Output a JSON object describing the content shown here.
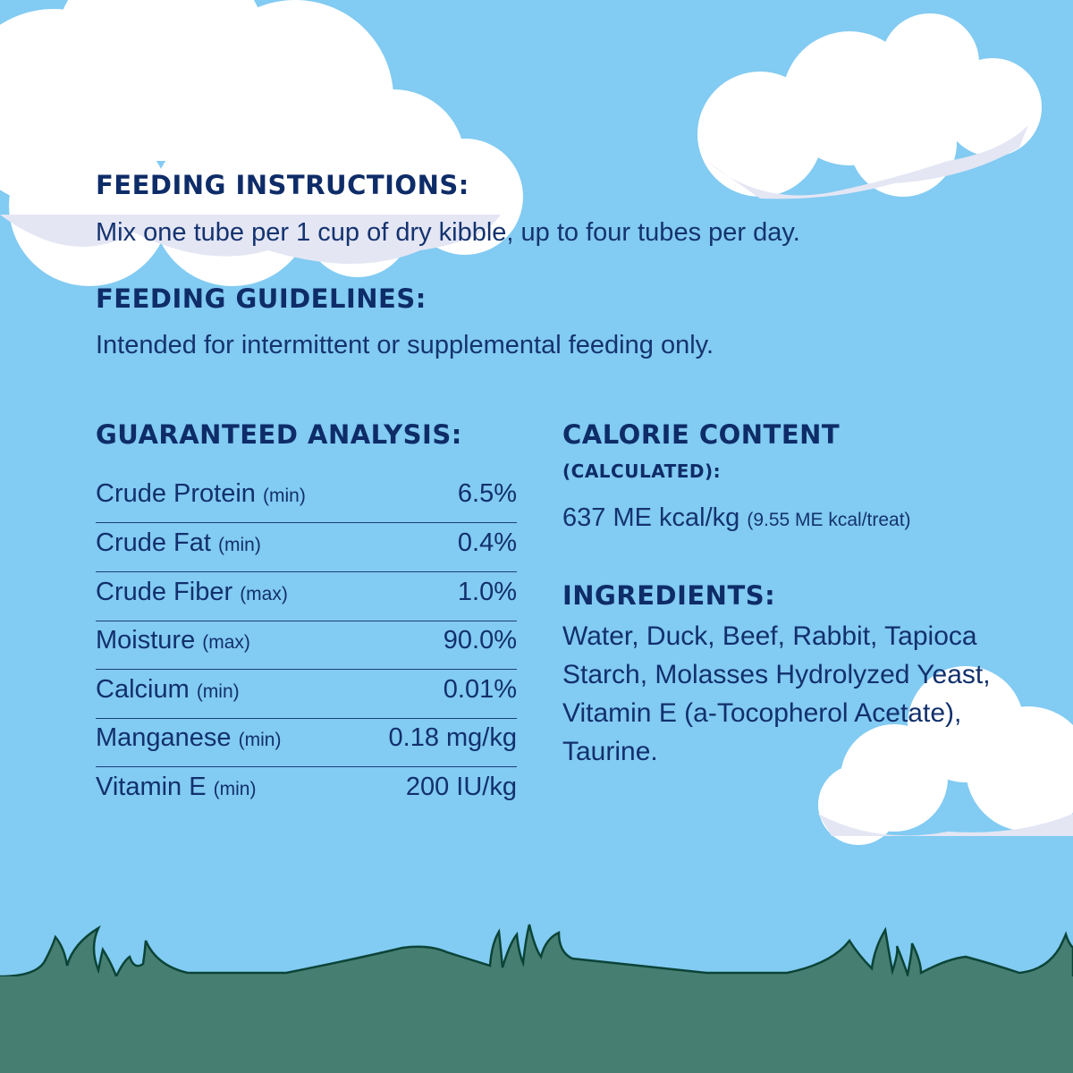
{
  "colors": {
    "sky": "#82CBF2",
    "text": "#12306D",
    "grass": "#477E72",
    "grass_outline": "#0B4437",
    "cloud": "#FFFFFF",
    "cloud_shade": "#E4E6F4"
  },
  "feeding_instructions": {
    "heading": "FEEDING INSTRUCTIONS:",
    "text": "Mix one tube per 1 cup of dry kibble, up to four tubes per day."
  },
  "feeding_guidelines": {
    "heading": "FEEDING GUIDELINES:",
    "text": "Intended for intermittent or supplemental feeding only."
  },
  "guaranteed_analysis": {
    "heading": "GUARANTEED ANALYSIS:",
    "rows": [
      {
        "name": "Crude Protein",
        "qualifier": "(min)",
        "value": "6.5%"
      },
      {
        "name": "Crude Fat",
        "qualifier": "(min)",
        "value": "0.4%"
      },
      {
        "name": "Crude Fiber",
        "qualifier": "(max)",
        "value": "1.0%"
      },
      {
        "name": "Moisture",
        "qualifier": "(max)",
        "value": "90.0%"
      },
      {
        "name": "Calcium",
        "qualifier": "(min)",
        "value": "0.01%"
      },
      {
        "name": "Manganese",
        "qualifier": "(min)",
        "value": "0.18 mg/kg"
      },
      {
        "name": "Vitamin E",
        "qualifier": "(min)",
        "value": "200 IU/kg"
      }
    ]
  },
  "calorie_content": {
    "heading": "CALORIE CONTENT",
    "subheading": "(CALCULATED):",
    "value": "637 ME kcal/kg",
    "per_treat": "(9.55 ME kcal/treat)"
  },
  "ingredients": {
    "heading": "INGREDIENTS:",
    "text": "Water, Duck, Beef, Rabbit, Tapioca Starch, Molasses Hydrolyzed Yeast, Vitamin E (a-Tocopherol Acetate), Taurine."
  }
}
